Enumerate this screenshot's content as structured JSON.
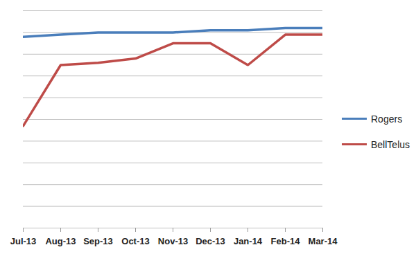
{
  "chart_data": {
    "type": "line",
    "categories": [
      "Jul-13",
      "Aug-13",
      "Sep-13",
      "Oct-13",
      "Nov-13",
      "Dec-13",
      "Jan-14",
      "Feb-14",
      "Mar-14"
    ],
    "series": [
      {
        "name": "Rogers",
        "color": "#4a7ebb",
        "values": [
          8.8,
          8.9,
          9.0,
          9.0,
          9.0,
          9.1,
          9.1,
          9.2,
          9.2
        ]
      },
      {
        "name": "BellTelus",
        "color": "#be4b48",
        "values": [
          4.7,
          7.5,
          7.6,
          7.8,
          8.5,
          8.5,
          7.5,
          8.9,
          8.9
        ]
      }
    ],
    "ylim": [
      0,
      10
    ],
    "yticks": [
      0,
      1,
      2,
      3,
      4,
      5,
      6,
      7,
      8,
      9,
      10
    ],
    "grid": true,
    "legend": "right",
    "tick_labels": "x"
  }
}
